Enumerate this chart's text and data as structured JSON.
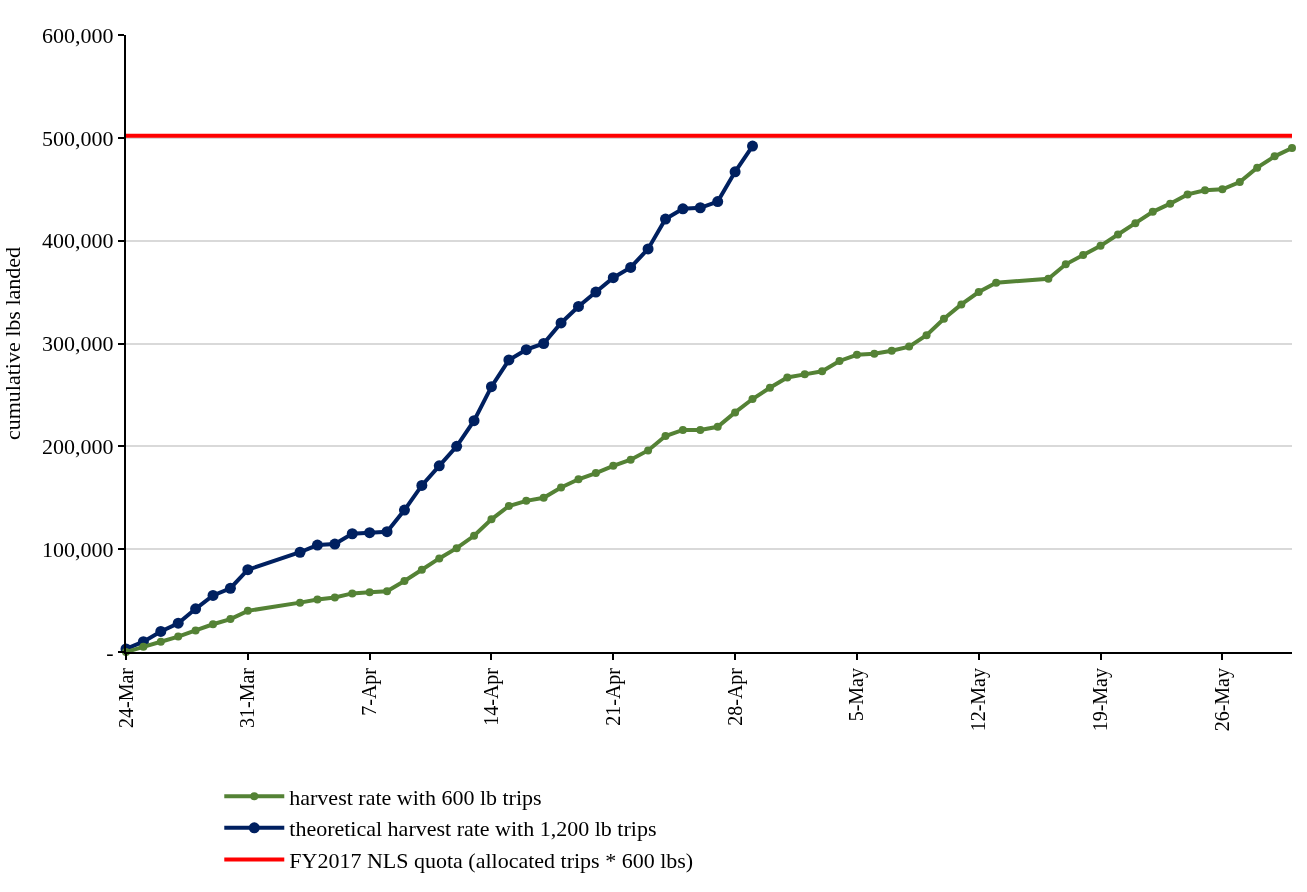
{
  "chart_data": {
    "type": "line",
    "ylabel": "cumulative lbs landed",
    "xlim": [
      "--03-24",
      "--05-30"
    ],
    "xticks": [
      {
        "value": "--03-24",
        "label": "24-Mar"
      },
      {
        "value": "--03-31",
        "label": "31-Mar"
      },
      {
        "value": "--04-07",
        "label": "7-Apr"
      },
      {
        "value": "--04-14",
        "label": "14-Apr"
      },
      {
        "value": "--04-21",
        "label": "21-Apr"
      },
      {
        "value": "--04-28",
        "label": "28-Apr"
      },
      {
        "value": "--05-05",
        "label": "5-May"
      },
      {
        "value": "--05-12",
        "label": "12-May"
      },
      {
        "value": "--05-19",
        "label": "19-May"
      },
      {
        "value": "--05-26",
        "label": "26-May"
      }
    ],
    "ylim": [
      0,
      600000
    ],
    "yticks": [
      {
        "value": 0,
        "label": "-"
      },
      {
        "value": 100000,
        "label": "100,000"
      },
      {
        "value": 200000,
        "label": "200,000"
      },
      {
        "value": 300000,
        "label": "300,000"
      },
      {
        "value": 400000,
        "label": "400,000"
      },
      {
        "value": 500000,
        "label": "500,000"
      },
      {
        "value": 600000,
        "label": "600,000"
      }
    ],
    "grid": "y",
    "legend": "bottom",
    "series": [
      {
        "name": "harvest rate with 600 lb trips",
        "color": "#548235",
        "marker": "circle",
        "x": [
          "--03-24",
          "--03-25",
          "--03-26",
          "--03-27",
          "--03-28",
          "--03-29",
          "--03-30",
          "--03-31",
          "--04-03",
          "--04-04",
          "--04-05",
          "--04-06",
          "--04-07",
          "--04-08",
          "--04-09",
          "--04-10",
          "--04-11",
          "--04-12",
          "--04-13",
          "--04-14",
          "--04-15",
          "--04-16",
          "--04-17",
          "--04-18",
          "--04-19",
          "--04-20",
          "--04-21",
          "--04-22",
          "--04-23",
          "--04-24",
          "--04-25",
          "--04-26",
          "--04-27",
          "--04-28",
          "--04-29",
          "--04-30",
          "--05-01",
          "--05-02",
          "--05-03",
          "--05-04",
          "--05-05",
          "--05-06",
          "--05-07",
          "--05-08",
          "--05-09",
          "--05-10",
          "--05-11",
          "--05-12",
          "--05-13",
          "--05-16",
          "--05-17",
          "--05-18",
          "--05-19",
          "--05-20",
          "--05-21",
          "--05-22",
          "--05-23",
          "--05-24",
          "--05-25",
          "--05-26",
          "--05-27",
          "--05-28",
          "--05-29",
          "--05-30"
        ],
        "values": [
          0,
          5000,
          10000,
          15000,
          21000,
          27000,
          32000,
          40000,
          48000,
          51000,
          53000,
          57000,
          58000,
          59000,
          69000,
          80000,
          91000,
          101000,
          113000,
          129000,
          142000,
          147000,
          150000,
          160000,
          168000,
          174000,
          181000,
          187000,
          196000,
          210000,
          216000,
          216000,
          219000,
          233000,
          246000,
          257000,
          267000,
          270000,
          273000,
          283000,
          289000,
          290000,
          293000,
          297000,
          308000,
          324000,
          338000,
          350000,
          359000,
          363000,
          377000,
          386000,
          395000,
          406000,
          417000,
          428000,
          436000,
          445000,
          449000,
          450000,
          457000,
          471000,
          482000,
          490000
        ]
      },
      {
        "name": "theoretical harvest rate with 1,200 lb trips",
        "color": "#002060",
        "marker": "circle",
        "x": [
          "--03-24",
          "--03-25",
          "--03-26",
          "--03-27",
          "--03-28",
          "--03-29",
          "--03-30",
          "--03-31",
          "--04-03",
          "--04-04",
          "--04-05",
          "--04-06",
          "--04-07",
          "--04-08",
          "--04-09",
          "--04-10",
          "--04-11",
          "--04-12",
          "--04-13",
          "--04-14",
          "--04-15",
          "--04-16",
          "--04-17",
          "--04-18",
          "--04-19",
          "--04-20",
          "--04-21",
          "--04-22",
          "--04-23",
          "--04-24",
          "--04-25",
          "--04-26",
          "--04-27",
          "--04-28",
          "--04-29"
        ],
        "values": [
          3000,
          10000,
          20000,
          28000,
          42000,
          55000,
          62000,
          80000,
          97000,
          104000,
          105000,
          115000,
          116000,
          117000,
          138000,
          162000,
          181000,
          200000,
          225000,
          258000,
          284000,
          294000,
          300000,
          320000,
          336000,
          350000,
          364000,
          374000,
          392000,
          421000,
          431000,
          432000,
          438000,
          467000,
          492000
        ]
      },
      {
        "name": "FY2017 NLS quota (allocated trips * 600 lbs)",
        "color": "#ff0000",
        "marker": "none",
        "x": [
          "--03-24",
          "--05-30"
        ],
        "values": [
          502000,
          502000
        ]
      }
    ]
  }
}
